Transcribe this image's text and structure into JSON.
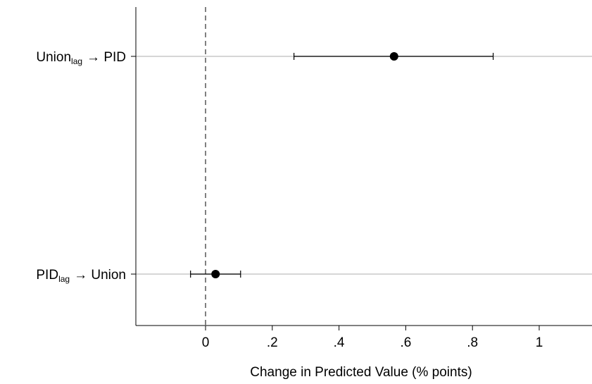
{
  "chart_data": {
    "type": "scatter",
    "subtype": "coefficient-plot-with-ci",
    "title": "",
    "xlabel": "Change in Predicted Value (% points)",
    "ylabel": "",
    "xlim": [
      -0.21,
      1.15
    ],
    "x_ticks": [
      {
        "value": 0,
        "label": "0"
      },
      {
        "value": 0.2,
        "label": ".2"
      },
      {
        "value": 0.4,
        "label": ".4"
      },
      {
        "value": 0.6,
        "label": ".6"
      },
      {
        "value": 0.8,
        "label": ".8"
      },
      {
        "value": 1,
        "label": "1"
      }
    ],
    "reference_line": {
      "x": 0,
      "style": "dashed"
    },
    "grid": "horizontal-at-categories",
    "legend": "none",
    "colors": {
      "marker": "#000000",
      "gridline": "#c8c8c8",
      "axis": "#000000"
    },
    "points": [
      {
        "id": "union-to-pid",
        "label_main": "Union",
        "label_sub": "lag",
        "label_rest": "→ PID",
        "estimate": 0.565,
        "ci_low": 0.265,
        "ci_high": 0.862
      },
      {
        "id": "pid-to-union",
        "label_main": "PID",
        "label_sub": "lag",
        "label_rest": "→ Union",
        "estimate": 0.03,
        "ci_low": -0.045,
        "ci_high": 0.105
      }
    ]
  }
}
